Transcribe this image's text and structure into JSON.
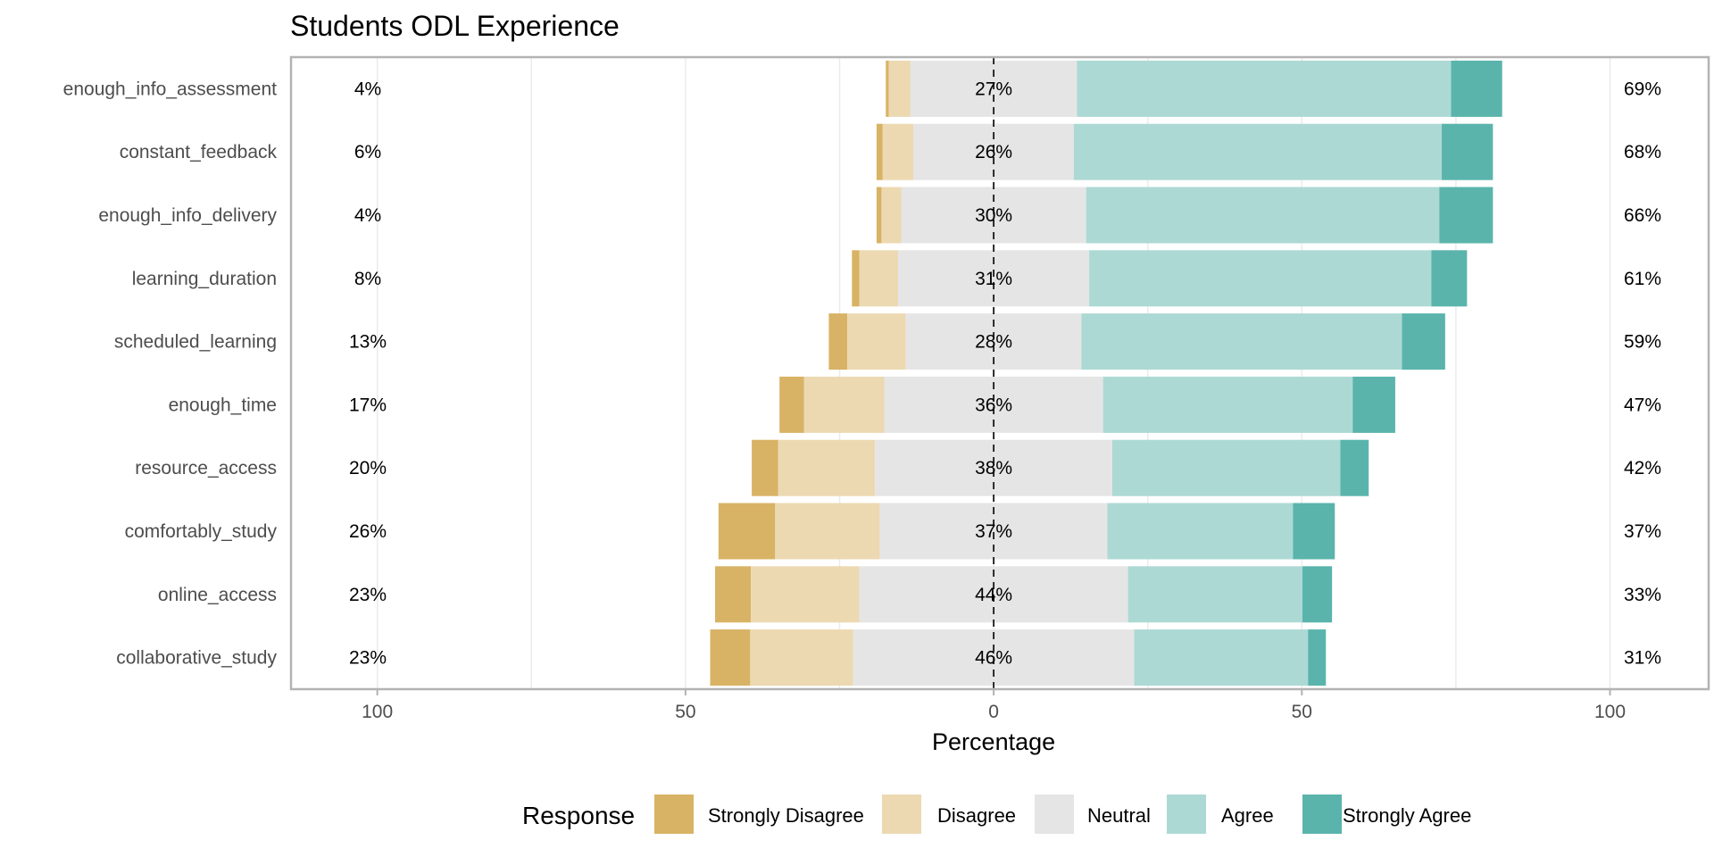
{
  "chart_data": {
    "type": "bar",
    "orientation": "horizontal-diverging",
    "title": "Students ODL Experience",
    "xlabel": "Percentage",
    "xlim": [
      -114,
      116
    ],
    "xticks": [
      {
        "value": -100,
        "label": "100"
      },
      {
        "value": -50,
        "label": "50"
      },
      {
        "value": 0,
        "label": "0"
      },
      {
        "value": 50,
        "label": "50"
      },
      {
        "value": 100,
        "label": "100"
      }
    ],
    "legend_title": "Response",
    "legend_position": "bottom",
    "grid": true,
    "series": [
      {
        "name": "Strongly Disagree",
        "color": "#D8B365"
      },
      {
        "name": "Disagree",
        "color": "#ECD9B2"
      },
      {
        "name": "Neutral",
        "color": "#E5E5E5"
      },
      {
        "name": "Agree",
        "color": "#ADD9D4"
      },
      {
        "name": "Strongly Agree",
        "color": "#5AB4AC"
      }
    ],
    "categories": [
      {
        "label": "enough_info_assessment",
        "values": [
          0.5,
          3.5,
          27,
          60.7,
          8.3
        ],
        "low_label": "4%",
        "neutral_label": "27%",
        "high_label": "69%"
      },
      {
        "label": "constant_feedback",
        "values": [
          1,
          5,
          26,
          59.7,
          8.3
        ],
        "low_label": "6%",
        "neutral_label": "26%",
        "high_label": "68%"
      },
      {
        "label": "enough_info_delivery",
        "values": [
          0.8,
          3.2,
          30,
          57.3,
          8.7
        ],
        "low_label": "4%",
        "neutral_label": "30%",
        "high_label": "66%"
      },
      {
        "label": "learning_duration",
        "values": [
          1.2,
          6.3,
          31,
          55.5,
          5.8
        ],
        "low_label": "8%",
        "neutral_label": "31%",
        "high_label": "61%"
      },
      {
        "label": "scheduled_learning",
        "values": [
          3,
          9.5,
          28.5,
          52,
          7
        ],
        "low_label": "13%",
        "neutral_label": "28%",
        "high_label": "59%"
      },
      {
        "label": "enough_time",
        "values": [
          4,
          13,
          35.5,
          40.5,
          6.9
        ],
        "low_label": "17%",
        "neutral_label": "36%",
        "high_label": "47%"
      },
      {
        "label": "resource_access",
        "values": [
          4.3,
          15.7,
          38.5,
          37,
          4.6
        ],
        "low_label": "20%",
        "neutral_label": "38%",
        "high_label": "42%"
      },
      {
        "label": "comfortably_study",
        "values": [
          9.2,
          17,
          36.9,
          30.1,
          6.8
        ],
        "low_label": "26%",
        "neutral_label": "37%",
        "high_label": "37%"
      },
      {
        "label": "online_access",
        "values": [
          5.8,
          17.6,
          43.6,
          28.3,
          4.8
        ],
        "low_label": "23%",
        "neutral_label": "44%",
        "high_label": "33%"
      },
      {
        "label": "collaborative_study",
        "values": [
          6.5,
          16.7,
          45.6,
          28.2,
          2.9
        ],
        "low_label": "23%",
        "neutral_label": "46%",
        "high_label": "31%"
      }
    ]
  }
}
